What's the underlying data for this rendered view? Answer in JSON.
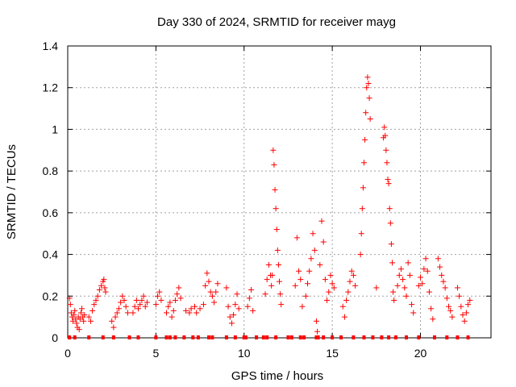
{
  "chart_data": {
    "type": "scatter",
    "title": "Day 330 of 2024, SRMTID for receiver mayg",
    "xlabel": "GPS time / hours",
    "ylabel": "SRMTID / TECUs",
    "xlim": [
      0,
      24
    ],
    "ylim": [
      0,
      1.4
    ],
    "xticks": [
      0,
      5,
      10,
      15,
      20
    ],
    "yticks": [
      0,
      0.2,
      0.4,
      0.6,
      0.8,
      1,
      1.2,
      1.4
    ],
    "ytick_labels": [
      "0",
      "0.2",
      "0.4",
      "0.6",
      "0.8",
      "1",
      "1.2",
      "1.4"
    ],
    "grid": true,
    "marker": "+",
    "series_color": "#ff0000",
    "series": [
      {
        "name": "SRMTID",
        "points": [
          [
            0.1,
            0.19
          ],
          [
            0.15,
            0.16
          ],
          [
            0.2,
            0.12
          ],
          [
            0.25,
            0.1
          ],
          [
            0.3,
            0.08
          ],
          [
            0.35,
            0.11
          ],
          [
            0.4,
            0.13
          ],
          [
            0.45,
            0.09
          ],
          [
            0.5,
            0.07
          ],
          [
            0.55,
            0.05
          ],
          [
            0.6,
            0.1
          ],
          [
            0.65,
            0.04
          ],
          [
            0.7,
            0.09
          ],
          [
            0.75,
            0.12
          ],
          [
            0.8,
            0.14
          ],
          [
            0.85,
            0.1
          ],
          [
            0.9,
            0.08
          ],
          [
            0.95,
            0.11
          ],
          [
            1.2,
            0.1
          ],
          [
            1.3,
            0.08
          ],
          [
            1.4,
            0.13
          ],
          [
            1.5,
            0.16
          ],
          [
            1.6,
            0.18
          ],
          [
            1.7,
            0.2
          ],
          [
            1.8,
            0.23
          ],
          [
            1.9,
            0.25
          ],
          [
            2.0,
            0.27
          ],
          [
            2.05,
            0.28
          ],
          [
            2.1,
            0.24
          ],
          [
            2.15,
            0.22
          ],
          [
            2.5,
            0.08
          ],
          [
            2.6,
            0.05
          ],
          [
            2.7,
            0.1
          ],
          [
            2.8,
            0.12
          ],
          [
            2.9,
            0.14
          ],
          [
            3.0,
            0.17
          ],
          [
            3.1,
            0.2
          ],
          [
            3.2,
            0.18
          ],
          [
            3.3,
            0.15
          ],
          [
            3.4,
            0.12
          ],
          [
            3.7,
            0.12
          ],
          [
            3.8,
            0.15
          ],
          [
            3.9,
            0.18
          ],
          [
            4.0,
            0.14
          ],
          [
            4.1,
            0.16
          ],
          [
            4.2,
            0.18
          ],
          [
            4.3,
            0.2
          ],
          [
            4.4,
            0.15
          ],
          [
            4.5,
            0.17
          ],
          [
            5.0,
            0.16
          ],
          [
            5.1,
            0.2
          ],
          [
            5.2,
            0.22
          ],
          [
            5.3,
            0.18
          ],
          [
            5.6,
            0.12
          ],
          [
            5.7,
            0.15
          ],
          [
            5.8,
            0.17
          ],
          [
            5.9,
            0.1
          ],
          [
            6.0,
            0.13
          ],
          [
            6.1,
            0.18
          ],
          [
            6.2,
            0.21
          ],
          [
            6.3,
            0.24
          ],
          [
            6.4,
            0.19
          ],
          [
            6.7,
            0.13
          ],
          [
            6.9,
            0.12
          ],
          [
            7.0,
            0.14
          ],
          [
            7.2,
            0.15
          ],
          [
            7.3,
            0.12
          ],
          [
            7.5,
            0.14
          ],
          [
            7.7,
            0.16
          ],
          [
            7.8,
            0.25
          ],
          [
            7.9,
            0.31
          ],
          [
            8.0,
            0.27
          ],
          [
            8.1,
            0.22
          ],
          [
            8.2,
            0.2
          ],
          [
            8.3,
            0.17
          ],
          [
            8.4,
            0.22
          ],
          [
            8.5,
            0.26
          ],
          [
            9.0,
            0.24
          ],
          [
            9.1,
            0.15
          ],
          [
            9.2,
            0.1
          ],
          [
            9.3,
            0.07
          ],
          [
            9.4,
            0.11
          ],
          [
            9.5,
            0.16
          ],
          [
            9.6,
            0.21
          ],
          [
            9.7,
            0.14
          ],
          [
            10.2,
            0.15
          ],
          [
            10.3,
            0.19
          ],
          [
            10.4,
            0.23
          ],
          [
            10.5,
            0.13
          ],
          [
            11.2,
            0.21
          ],
          [
            11.3,
            0.28
          ],
          [
            11.4,
            0.35
          ],
          [
            11.5,
            0.3
          ],
          [
            11.55,
            0.25
          ],
          [
            11.6,
            0.3
          ],
          [
            11.65,
            0.9
          ],
          [
            11.7,
            0.83
          ],
          [
            11.75,
            0.71
          ],
          [
            11.8,
            0.62
          ],
          [
            11.85,
            0.52
          ],
          [
            11.9,
            0.42
          ],
          [
            11.95,
            0.35
          ],
          [
            12.0,
            0.27
          ],
          [
            12.05,
            0.21
          ],
          [
            12.1,
            0.16
          ],
          [
            12.9,
            0.25
          ],
          [
            13.0,
            0.48
          ],
          [
            13.1,
            0.32
          ],
          [
            13.2,
            0.28
          ],
          [
            13.3,
            0.15
          ],
          [
            13.5,
            0.2
          ],
          [
            13.6,
            0.26
          ],
          [
            13.7,
            0.32
          ],
          [
            13.8,
            0.38
          ],
          [
            13.9,
            0.5
          ],
          [
            14.0,
            0.42
          ],
          [
            14.1,
            0.08
          ],
          [
            14.15,
            0.03
          ],
          [
            14.3,
            0.35
          ],
          [
            14.4,
            0.56
          ],
          [
            14.5,
            0.46
          ],
          [
            14.6,
            0.28
          ],
          [
            14.7,
            0.18
          ],
          [
            14.8,
            0.22
          ],
          [
            14.9,
            0.3
          ],
          [
            15.0,
            0.26
          ],
          [
            15.1,
            0.24
          ],
          [
            15.6,
            0.15
          ],
          [
            15.7,
            0.1
          ],
          [
            15.8,
            0.18
          ],
          [
            15.9,
            0.22
          ],
          [
            16.0,
            0.27
          ],
          [
            16.1,
            0.32
          ],
          [
            16.2,
            0.3
          ],
          [
            16.3,
            0.25
          ],
          [
            16.6,
            0.4
          ],
          [
            16.65,
            0.5
          ],
          [
            16.7,
            0.62
          ],
          [
            16.75,
            0.72
          ],
          [
            16.8,
            0.84
          ],
          [
            16.85,
            0.95
          ],
          [
            16.9,
            1.08
          ],
          [
            16.95,
            1.2
          ],
          [
            17.0,
            1.25
          ],
          [
            17.05,
            1.22
          ],
          [
            17.1,
            1.15
          ],
          [
            17.15,
            1.05
          ],
          [
            17.5,
            0.24
          ],
          [
            17.9,
            0.96
          ],
          [
            17.95,
            1.01
          ],
          [
            18.0,
            0.97
          ],
          [
            18.05,
            0.9
          ],
          [
            18.1,
            0.84
          ],
          [
            18.15,
            0.76
          ],
          [
            18.2,
            0.74
          ],
          [
            18.25,
            0.62
          ],
          [
            18.3,
            0.55
          ],
          [
            18.35,
            0.45
          ],
          [
            18.4,
            0.36
          ],
          [
            18.45,
            0.22
          ],
          [
            18.5,
            0.18
          ],
          [
            18.7,
            0.25
          ],
          [
            18.8,
            0.3
          ],
          [
            18.9,
            0.33
          ],
          [
            19.0,
            0.28
          ],
          [
            19.1,
            0.24
          ],
          [
            19.2,
            0.2
          ],
          [
            19.3,
            0.36
          ],
          [
            19.4,
            0.3
          ],
          [
            19.5,
            0.16
          ],
          [
            19.6,
            0.12
          ],
          [
            19.9,
            0.25
          ],
          [
            20.0,
            0.29
          ],
          [
            20.1,
            0.26
          ],
          [
            20.2,
            0.33
          ],
          [
            20.3,
            0.38
          ],
          [
            20.4,
            0.32
          ],
          [
            20.5,
            0.22
          ],
          [
            20.6,
            0.14
          ],
          [
            20.7,
            0.09
          ],
          [
            21.0,
            0.38
          ],
          [
            21.1,
            0.34
          ],
          [
            21.2,
            0.3
          ],
          [
            21.3,
            0.27
          ],
          [
            21.4,
            0.24
          ],
          [
            21.5,
            0.19
          ],
          [
            21.6,
            0.15
          ],
          [
            21.7,
            0.13
          ],
          [
            21.8,
            0.1
          ],
          [
            22.1,
            0.24
          ],
          [
            22.2,
            0.2
          ],
          [
            22.3,
            0.15
          ],
          [
            22.4,
            0.11
          ],
          [
            22.5,
            0.08
          ],
          [
            22.6,
            0.12
          ],
          [
            22.7,
            0.16
          ],
          [
            22.8,
            0.18
          ]
        ]
      }
    ],
    "zero_markers_x": [
      0.1,
      0.4,
      1.2,
      2.0,
      2.6,
      3.5,
      4.0,
      5.0,
      5.6,
      5.8,
      6.1,
      6.6,
      7.1,
      7.4,
      8.0,
      8.2,
      9.0,
      9.5,
      10.0,
      10.1,
      10.7,
      11.1,
      11.3,
      11.8,
      12.5,
      12.7,
      13.2,
      13.4,
      14.1,
      14.2,
      14.5,
      15.0,
      15.5,
      16.2,
      16.8,
      17.3,
      17.8,
      18.2,
      18.6,
      19.2,
      19.9,
      20.8,
      21.5,
      22.1,
      22.7
    ]
  }
}
